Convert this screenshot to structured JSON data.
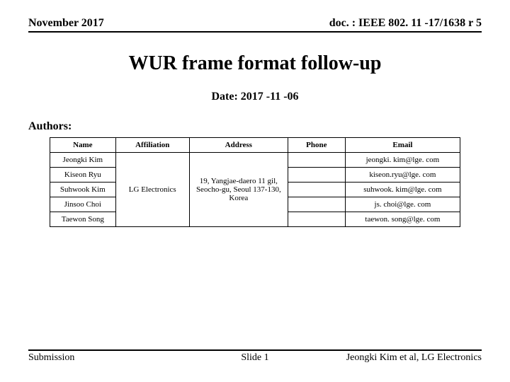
{
  "header": {
    "left": "November 2017",
    "right": "doc. : IEEE 802. 11 -17/1638 r 5"
  },
  "title": "WUR frame format follow-up",
  "date": "Date: 2017 -11 -06",
  "authors_label": "Authors:",
  "table": {
    "columns": [
      "Name",
      "Affiliation",
      "Address",
      "Phone",
      "Email"
    ],
    "affiliation": "LG Electronics",
    "address": "19, Yangjae-daero 11 gil, Seocho-gu, Seoul 137-130, Korea",
    "rows": [
      {
        "name": "Jeongki Kim",
        "phone": "",
        "email": "jeongki. kim@lge. com"
      },
      {
        "name": "Kiseon Ryu",
        "phone": "",
        "email": "kiseon.ryu@lge. com"
      },
      {
        "name": "Suhwook Kim",
        "phone": "",
        "email": "suhwook. kim@lge. com"
      },
      {
        "name": "Jinsoo Choi",
        "phone": "",
        "email": "js. choi@lge. com"
      },
      {
        "name": "Taewon Song",
        "phone": "",
        "email": "taewon. song@lge. com"
      }
    ]
  },
  "footer": {
    "left": "Submission",
    "center": "Slide 1",
    "right": "Jeongki Kim et al, LG Electronics"
  }
}
